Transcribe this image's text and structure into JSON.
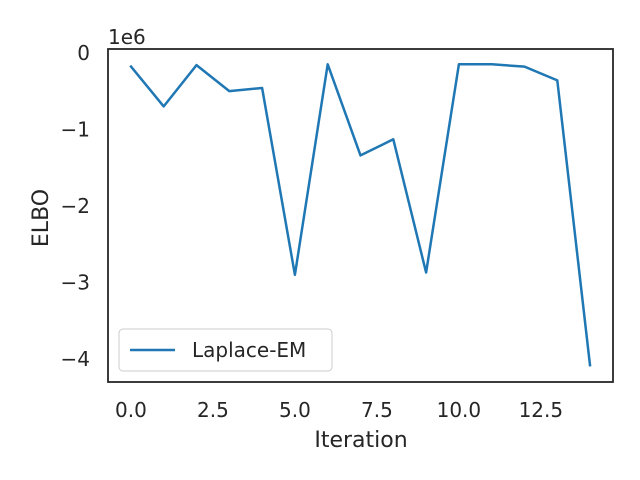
{
  "chart_data": {
    "type": "line",
    "title": "",
    "xlabel": "Iteration",
    "ylabel": "ELBO",
    "y_offset_label": "1e6",
    "xlim": [
      -0.7,
      14.7
    ],
    "ylim": [
      -4.3,
      0.05
    ],
    "xticks": [
      0,
      2.5,
      5,
      7.5,
      10,
      12.5
    ],
    "xtick_labels": [
      "0.0",
      "2.5",
      "5.0",
      "7.5",
      "10.0",
      "12.5"
    ],
    "yticks": [
      0,
      -1,
      -2,
      -3,
      -4
    ],
    "ytick_labels": [
      "0",
      "−1",
      "−2",
      "−3",
      "−4"
    ],
    "grid": false,
    "legend_position": "lower-left",
    "series": [
      {
        "name": "Laplace-EM",
        "color": "#1f77b4",
        "x": [
          0,
          1,
          2,
          3,
          4,
          5,
          6,
          7,
          8,
          9,
          10,
          11,
          12,
          13,
          14
        ],
        "y": [
          -0.18,
          -0.7,
          -0.16,
          -0.5,
          -0.46,
          -2.9,
          -0.15,
          -1.34,
          -1.13,
          -2.87,
          -0.15,
          -0.15,
          -0.18,
          -0.36,
          -4.08
        ]
      }
    ]
  }
}
